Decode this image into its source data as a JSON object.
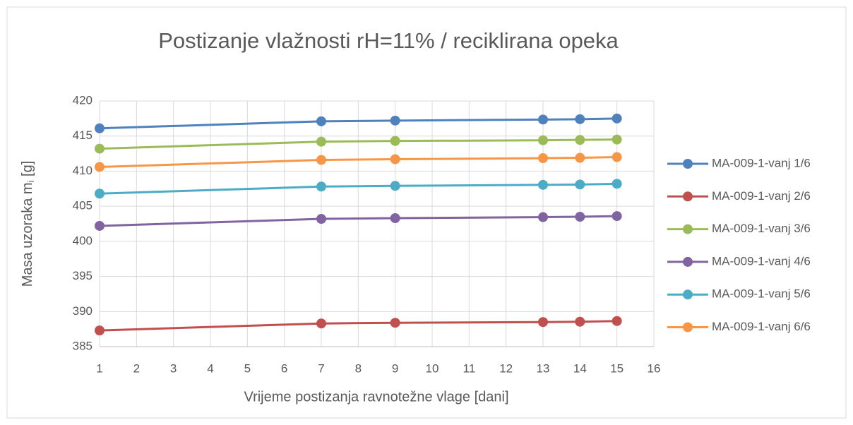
{
  "chart_data": {
    "type": "line",
    "title": "Postizanje vlažnosti rH=11% / reciklirana opeka",
    "x_label": "Vrijeme postizanja ravnotežne vlage [dani]",
    "y_label": [
      "Masa uzoraka m",
      "i",
      " [g]"
    ],
    "x": [
      1,
      7,
      9,
      13,
      14,
      15
    ],
    "series": [
      {
        "name": "MA-009-1-vanj 1/6",
        "color": "#4f81bd",
        "values": [
          416.1,
          417.1,
          417.2,
          417.35,
          417.4,
          417.5
        ]
      },
      {
        "name": "MA-009-1-vanj 2/6",
        "color": "#c0504d",
        "values": [
          387.3,
          388.3,
          388.4,
          388.5,
          388.55,
          388.65
        ]
      },
      {
        "name": "MA-009-1-vanj 3/6",
        "color": "#9bbb59",
        "values": [
          413.2,
          414.2,
          414.3,
          414.4,
          414.45,
          414.5
        ]
      },
      {
        "name": "MA-009-1-vanj 4/6",
        "color": "#8064a2",
        "values": [
          402.2,
          403.2,
          403.3,
          403.45,
          403.5,
          403.6
        ]
      },
      {
        "name": "MA-009-1-vanj 5/6",
        "color": "#4bacc6",
        "values": [
          406.8,
          407.8,
          407.9,
          408.05,
          408.1,
          408.2
        ]
      },
      {
        "name": "MA-009-1-vanj 6/6",
        "color": "#f79646",
        "values": [
          410.6,
          411.6,
          411.7,
          411.85,
          411.9,
          412.0
        ]
      }
    ],
    "xlim": [
      1,
      16
    ],
    "xticks": [
      1,
      2,
      3,
      4,
      5,
      6,
      7,
      8,
      9,
      10,
      11,
      12,
      13,
      14,
      15,
      16
    ],
    "ylim": [
      385,
      420
    ],
    "yticks": [
      385,
      390,
      395,
      400,
      405,
      410,
      415,
      420
    ],
    "grid": true,
    "legend": "right"
  }
}
